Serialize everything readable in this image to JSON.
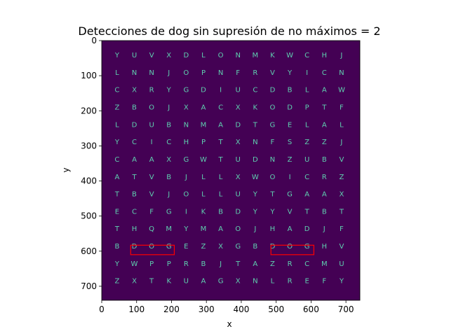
{
  "chart_data": {
    "type": "heatmap",
    "title": "Detecciones de dog sin supresión de no máximos = 2",
    "xlabel": "x",
    "ylabel": "y",
    "xlim": [
      0,
      740
    ],
    "ylim": [
      740,
      0
    ],
    "x_ticks": [
      0,
      100,
      200,
      300,
      400,
      500,
      600,
      700
    ],
    "y_ticks": [
      0,
      100,
      200,
      300,
      400,
      500,
      600,
      700
    ],
    "background_color": "#440154",
    "letter_color": "#5fd0b0",
    "box_color": "#ff0000",
    "grid": false,
    "letter_grid": {
      "x0": 44,
      "dx": 49.5,
      "y0": 43,
      "dy": 49.5,
      "rows": [
        [
          "Y",
          "U",
          "V",
          "X",
          "D",
          "L",
          "O",
          "N",
          "M",
          "K",
          "W",
          "C",
          "H",
          "J"
        ],
        [
          "L",
          "N",
          "N",
          "J",
          "O",
          "P",
          "N",
          "F",
          "R",
          "V",
          "Y",
          "I",
          "C",
          "N"
        ],
        [
          "C",
          "X",
          "R",
          "Y",
          "G",
          "D",
          "I",
          "U",
          "C",
          "D",
          "B",
          "L",
          "A",
          "W"
        ],
        [
          "Z",
          "B",
          "O",
          "J",
          "X",
          "A",
          "C",
          "X",
          "K",
          "O",
          "D",
          "P",
          "T",
          "F"
        ],
        [
          "L",
          "D",
          "U",
          "B",
          "N",
          "M",
          "A",
          "D",
          "T",
          "G",
          "E",
          "L",
          "A",
          "L"
        ],
        [
          "Y",
          "C",
          "I",
          "C",
          "H",
          "P",
          "T",
          "X",
          "N",
          "F",
          "S",
          "Z",
          "Z",
          "J"
        ],
        [
          "C",
          "A",
          "A",
          "X",
          "G",
          "W",
          "T",
          "U",
          "D",
          "N",
          "Z",
          "U",
          "B",
          "V"
        ],
        [
          "A",
          "T",
          "V",
          "B",
          "J",
          "L",
          "L",
          "X",
          "W",
          "O",
          "I",
          "C",
          "R",
          "Z"
        ],
        [
          "T",
          "B",
          "V",
          "J",
          "O",
          "L",
          "L",
          "U",
          "Y",
          "T",
          "G",
          "A",
          "A",
          "X"
        ],
        [
          "E",
          "C",
          "F",
          "G",
          "I",
          "K",
          "B",
          "D",
          "Y",
          "Y",
          "V",
          "T",
          "B",
          "T"
        ],
        [
          "T",
          "H",
          "Q",
          "M",
          "Y",
          "M",
          "A",
          "O",
          "J",
          "H",
          "A",
          "D",
          "J",
          "F"
        ],
        [
          "B",
          "D",
          "O",
          "G",
          "E",
          "Z",
          "X",
          "G",
          "B",
          "D",
          "O",
          "G",
          "H",
          "V"
        ],
        [
          "Y",
          "W",
          "P",
          "P",
          "R",
          "B",
          "J",
          "T",
          "A",
          "Z",
          "R",
          "C",
          "M",
          "U"
        ],
        [
          "Z",
          "X",
          "T",
          "K",
          "U",
          "A",
          "G",
          "X",
          "N",
          "L",
          "R",
          "E",
          "F",
          "Y"
        ]
      ]
    },
    "detections": [
      {
        "label": "dog",
        "x_min": 83,
        "x_max": 208,
        "y_min": 583,
        "y_max": 610
      },
      {
        "label": "dog",
        "x_min": 485,
        "x_max": 608,
        "y_min": 583,
        "y_max": 610
      }
    ]
  }
}
